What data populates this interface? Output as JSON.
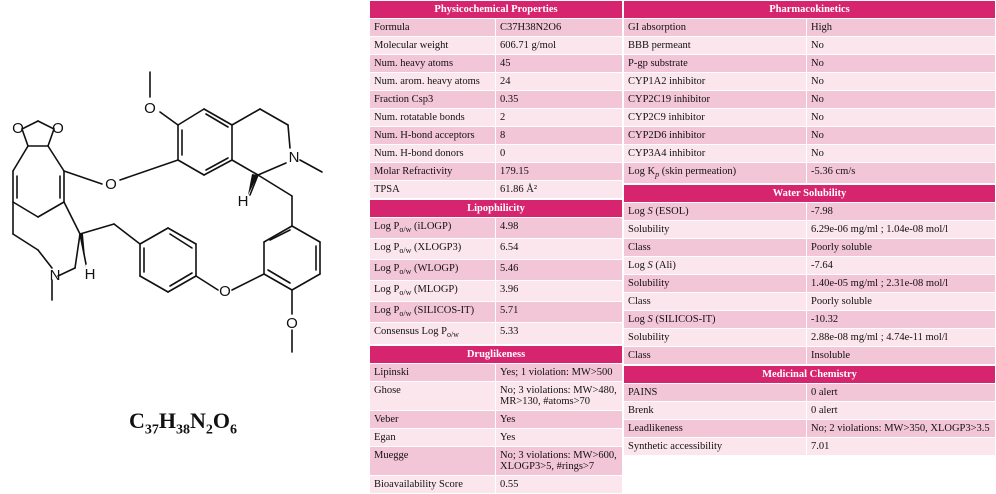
{
  "molecule": {
    "formula_parts": [
      "C",
      "37",
      "H",
      "38",
      "N",
      "2",
      "O",
      "6"
    ],
    "atom_labels": [
      "O",
      "O",
      "O",
      "O",
      "O",
      "O",
      "N",
      "N",
      "H",
      "H"
    ]
  },
  "physicochemical": {
    "header": "Physicochemical Properties",
    "rows": [
      {
        "label": "Formula",
        "value": "C37H38N2O6"
      },
      {
        "label": "Molecular weight",
        "value": "606.71 g/mol"
      },
      {
        "label": "Num. heavy atoms",
        "value": "45"
      },
      {
        "label": "Num. arom. heavy atoms",
        "value": "24"
      },
      {
        "label": "Fraction Csp3",
        "value": "0.35"
      },
      {
        "label": "Num. rotatable bonds",
        "value": "2"
      },
      {
        "label": "Num. H-bond acceptors",
        "value": "8"
      },
      {
        "label": "Num. H-bond donors",
        "value": "0"
      },
      {
        "label": "Molar Refractivity",
        "value": "179.15"
      },
      {
        "label": "TPSA",
        "value": "61.86 Å²"
      }
    ]
  },
  "lipophilicity": {
    "header": "Lipophilicity",
    "logp_prefix": "Log P",
    "logp_sub": "o/w",
    "consensus_prefix": "Consensus Log P",
    "rows": [
      {
        "method": "(iLOGP)",
        "value": "4.98"
      },
      {
        "method": "(XLOGP3)",
        "value": "6.54"
      },
      {
        "method": "(WLOGP)",
        "value": "5.46"
      },
      {
        "method": "(MLOGP)",
        "value": "3.96"
      },
      {
        "method": "(SILICOS-IT)",
        "value": "5.71"
      }
    ],
    "consensus_value": "5.33"
  },
  "druglikeness": {
    "header": "Druglikeness",
    "rows": [
      {
        "label": "Lipinski",
        "value": "Yes; 1 violation: MW>500"
      },
      {
        "label": "Ghose",
        "value": "No; 3 violations: MW>480, MR>130, #atoms>70"
      },
      {
        "label": "Veber",
        "value": "Yes"
      },
      {
        "label": "Egan",
        "value": "Yes"
      },
      {
        "label": "Muegge",
        "value": "No; 3 violations: MW>600, XLOGP3>5, #rings>7"
      },
      {
        "label": "Bioavailability Score",
        "value": "0.55"
      }
    ]
  },
  "pharmacokinetics": {
    "header": "Pharmacokinetics",
    "rows": [
      {
        "label": "GI absorption",
        "value": "High"
      },
      {
        "label": "BBB permeant",
        "value": "No"
      },
      {
        "label": "P-gp substrate",
        "value": "No"
      },
      {
        "label": "CYP1A2 inhibitor",
        "value": "No"
      },
      {
        "label": "CYP2C19 inhibitor",
        "value": "No"
      },
      {
        "label": "CYP2C9 inhibitor",
        "value": "No"
      },
      {
        "label": "CYP2D6 inhibitor",
        "value": "No"
      },
      {
        "label": "CYP3A4 inhibitor",
        "value": "No"
      }
    ],
    "logkp_prefix": "Log K",
    "logkp_sub": "p",
    "logkp_suffix": " (skin permeation)",
    "logkp_value": "-5.36 cm/s"
  },
  "water_solubility": {
    "header": "Water Solubility",
    "logs_prefix": "Log ",
    "logs_var": "S",
    "rows": [
      {
        "kind": "logs",
        "method": "(ESOL)",
        "value": "-7.98"
      },
      {
        "kind": "plain",
        "label": "Solubility",
        "value": "6.29e-06 mg/ml ; 1.04e-08 mol/l"
      },
      {
        "kind": "plain",
        "label": "Class",
        "value": "Poorly soluble"
      },
      {
        "kind": "logs",
        "method": "(Ali)",
        "value": "-7.64"
      },
      {
        "kind": "plain",
        "label": "Solubility",
        "value": "1.40e-05 mg/ml ; 2.31e-08 mol/l"
      },
      {
        "kind": "plain",
        "label": "Class",
        "value": "Poorly soluble"
      },
      {
        "kind": "logs",
        "method": "(SILICOS-IT)",
        "value": "-10.32"
      },
      {
        "kind": "plain",
        "label": "Solubility",
        "value": "2.88e-08 mg/ml ; 4.74e-11 mol/l"
      },
      {
        "kind": "plain",
        "label": "Class",
        "value": "Insoluble"
      }
    ]
  },
  "medicinal_chemistry": {
    "header": "Medicinal Chemistry",
    "rows": [
      {
        "label": "PAINS",
        "value": "0 alert"
      },
      {
        "label": "Brenk",
        "value": "0 alert"
      },
      {
        "label": "Leadlikeness",
        "value": "No; 2 violations: MW>350, XLOGP3>3.5"
      },
      {
        "label": "Synthetic accessibility",
        "value": "7.01"
      }
    ]
  }
}
